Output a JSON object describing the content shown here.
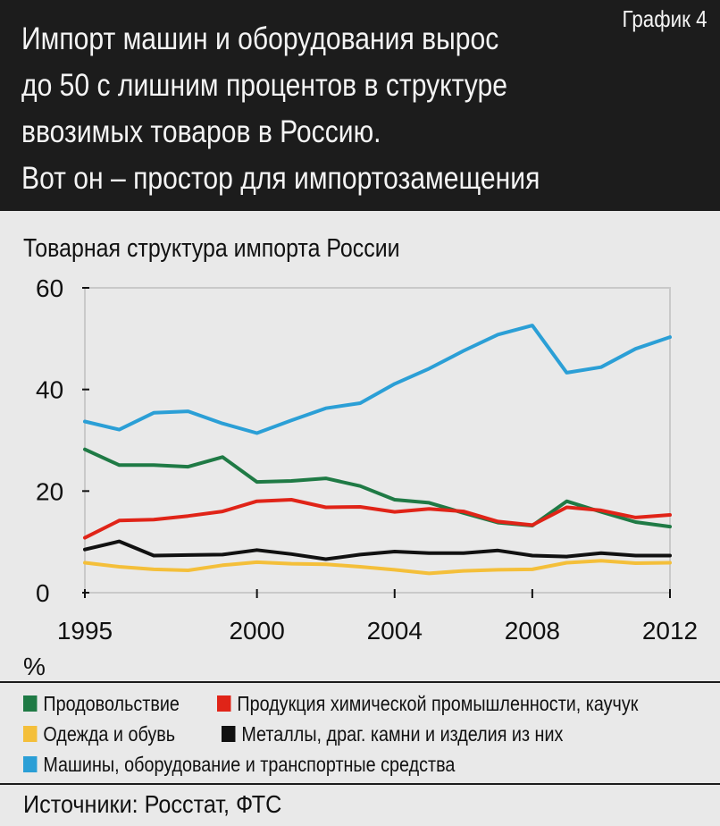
{
  "header": {
    "title_lines": [
      "Импорт машин и оборудования вырос",
      "до 50 с лишним процентов в структуре",
      "ввозимых товаров в Россию.",
      "Вот он – простор для импортозамещения"
    ],
    "badge": "График 4"
  },
  "unit": "%",
  "source": "Источники: Росстат, ФТС",
  "chart_data": {
    "type": "line",
    "title": "Товарная структура импорта России",
    "xlabel": "",
    "ylabel": "%",
    "x": [
      1995,
      1996,
      1997,
      1998,
      1999,
      2000,
      2001,
      2002,
      2003,
      2004,
      2005,
      2006,
      2007,
      2008,
      2009,
      2010,
      2011,
      2012
    ],
    "xticks": [
      "1995",
      "2000",
      "2004",
      "2008",
      "2012"
    ],
    "yticks": [
      "0",
      "20",
      "40",
      "60"
    ],
    "xlim": [
      1995,
      2012
    ],
    "ylim": [
      0,
      60
    ],
    "grid": false,
    "series": [
      {
        "name": "Продовольствие",
        "color": "#1f7a45",
        "values": [
          28.2,
          25.1,
          25.1,
          24.8,
          26.7,
          21.8,
          22.0,
          22.5,
          21.0,
          18.3,
          17.7,
          15.7,
          13.8,
          13.2,
          18.0,
          15.9,
          13.9,
          13.0
        ]
      },
      {
        "name": "Продукция химической промышленности, каучук",
        "color": "#e02418",
        "values": [
          10.8,
          14.2,
          14.4,
          15.1,
          16.0,
          18.0,
          18.3,
          16.8,
          16.9,
          15.9,
          16.5,
          16.0,
          14.0,
          13.3,
          16.8,
          16.2,
          14.8,
          15.3
        ]
      },
      {
        "name": "Одежда и обувь",
        "color": "#f4bf3a",
        "values": [
          5.9,
          5.1,
          4.6,
          4.4,
          5.4,
          6.0,
          5.7,
          5.6,
          5.1,
          4.5,
          3.8,
          4.3,
          4.5,
          4.6,
          5.9,
          6.3,
          5.8,
          5.9
        ]
      },
      {
        "name": "Металлы, драг. камни и изделия из них",
        "color": "#111111",
        "values": [
          8.5,
          10.1,
          7.3,
          7.4,
          7.5,
          8.4,
          7.6,
          6.6,
          7.5,
          8.1,
          7.8,
          7.8,
          8.3,
          7.3,
          7.1,
          7.8,
          7.3,
          7.3
        ]
      },
      {
        "name": "Машины, оборудование и транспортные средства",
        "color": "#2b9fd6",
        "values": [
          33.7,
          32.1,
          35.4,
          35.7,
          33.3,
          31.4,
          33.9,
          36.3,
          37.3,
          41.1,
          44.1,
          47.6,
          50.8,
          52.6,
          43.3,
          44.4,
          48.0,
          50.3
        ]
      }
    ]
  }
}
